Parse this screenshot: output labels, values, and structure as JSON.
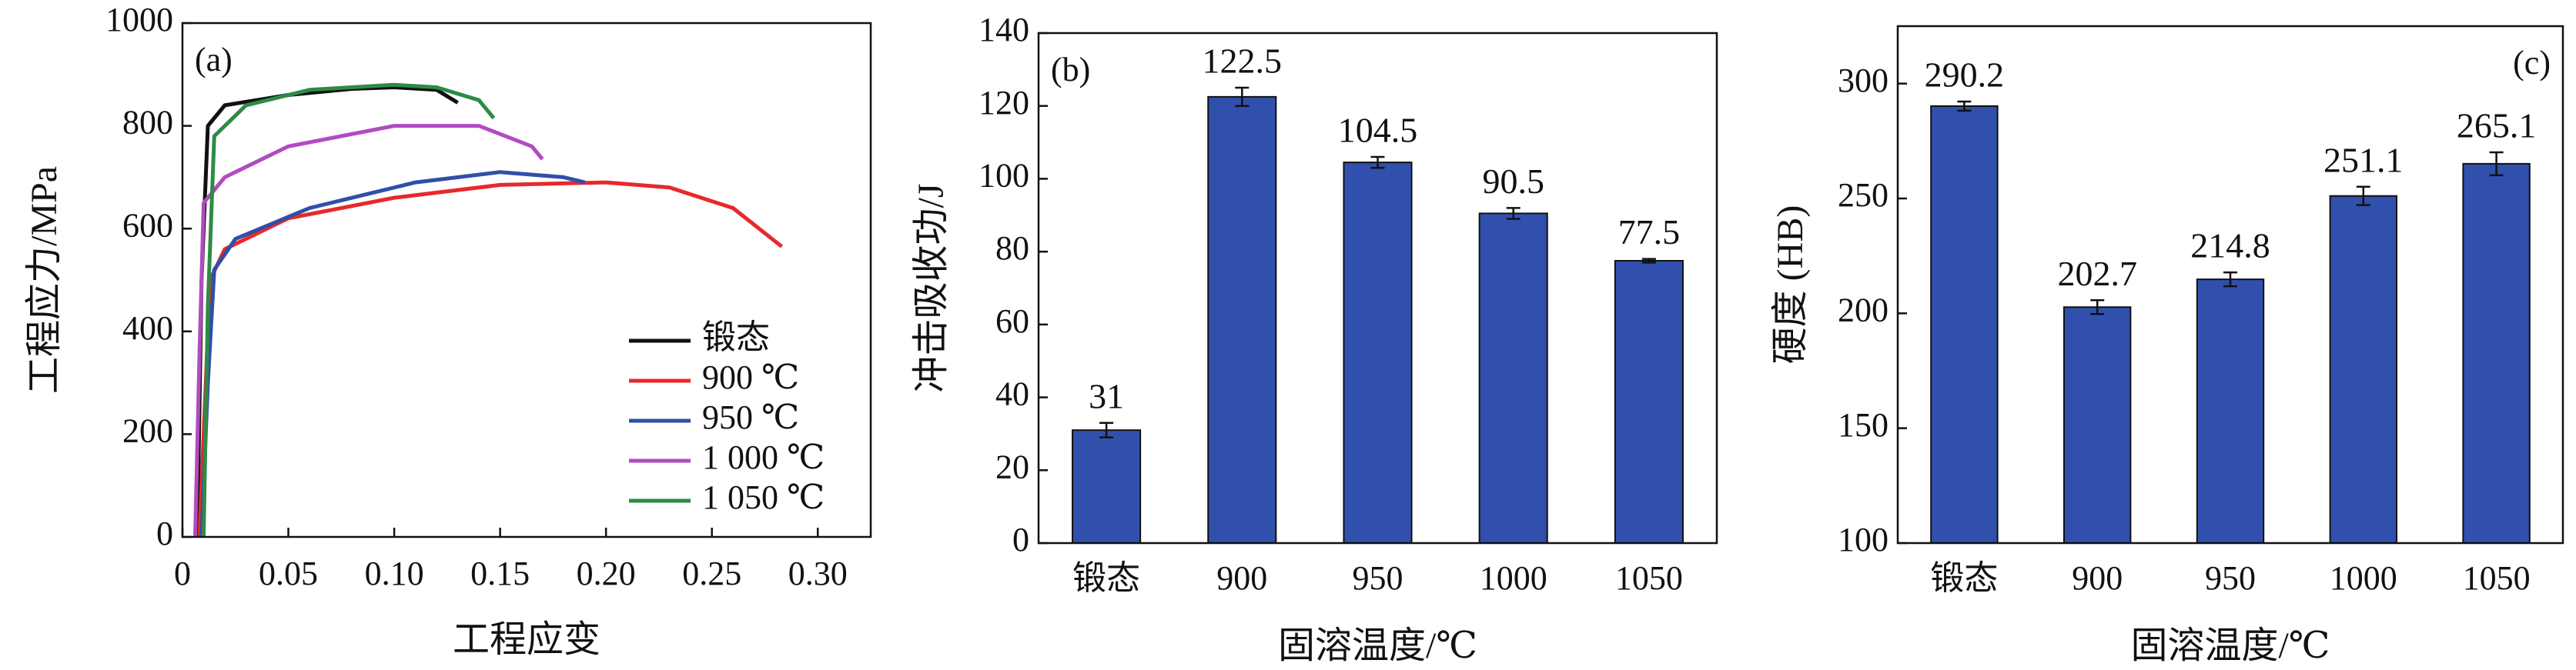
{
  "chart_data": [
    {
      "type": "line",
      "label": "(a)",
      "x_label": "工程应变",
      "y_label": "工程应力/MPa",
      "xlim": [
        0,
        0.325
      ],
      "xticks": [
        0,
        0.05,
        {
          "value": 0.1,
          "label": "0.10"
        },
        0.15,
        {
          "value": 0.2,
          "label": "0.20"
        },
        0.25,
        {
          "value": 0.3,
          "label": "0.30"
        }
      ],
      "ylim": [
        0,
        1000
      ],
      "yticks": [
        0,
        200,
        400,
        600,
        800,
        1000
      ],
      "legend": "lower right",
      "series": [
        {
          "name": "锻态",
          "color": "#111111",
          "x": [
            0.007,
            0.009,
            0.012,
            0.02,
            0.05,
            0.08,
            0.1,
            0.12,
            0.13
          ],
          "values": [
            0,
            500,
            800,
            840,
            860,
            872,
            875,
            870,
            845
          ]
        },
        {
          "name": "900 ℃",
          "color": "#e8282b",
          "x": [
            0.008,
            0.011,
            0.013,
            0.02,
            0.05,
            0.1,
            0.15,
            0.2,
            0.23,
            0.26,
            0.283
          ],
          "values": [
            0,
            300,
            500,
            560,
            620,
            660,
            685,
            690,
            680,
            640,
            565
          ]
        },
        {
          "name": "950 ℃",
          "color": "#2f4fa8",
          "x": [
            0.009,
            0.012,
            0.015,
            0.025,
            0.06,
            0.11,
            0.15,
            0.18,
            0.19
          ],
          "values": [
            0,
            300,
            520,
            580,
            640,
            690,
            710,
            700,
            690
          ]
        },
        {
          "name": "1 000 ℃",
          "color": "#b04cc0",
          "x": [
            0.006,
            0.008,
            0.01,
            0.02,
            0.05,
            0.1,
            0.14,
            0.165,
            0.17
          ],
          "values": [
            0,
            350,
            650,
            700,
            760,
            800,
            800,
            760,
            735
          ]
        },
        {
          "name": "1 050 ℃",
          "color": "#2e8b45",
          "x": [
            0.01,
            0.012,
            0.015,
            0.03,
            0.06,
            0.1,
            0.12,
            0.14,
            0.147
          ],
          "values": [
            0,
            450,
            780,
            840,
            870,
            880,
            875,
            850,
            815
          ]
        }
      ]
    },
    {
      "type": "bar",
      "label": "(b)",
      "x_label": "固溶温度/℃",
      "y_label": "冲击吸收功/J",
      "categories": [
        "锻态",
        "900",
        "950",
        "1000",
        "1050"
      ],
      "values": [
        31,
        122.5,
        104.5,
        90.5,
        77.5
      ],
      "errors": [
        2,
        2.5,
        1.5,
        1.5,
        0.5
      ],
      "color": "#3150ad",
      "ylim": [
        0,
        140
      ],
      "yticks": [
        0,
        20,
        40,
        60,
        80,
        100,
        120,
        140
      ]
    },
    {
      "type": "bar",
      "label": "(c)",
      "x_label": "固溶温度/℃",
      "y_label": "硬度 (HB)",
      "categories": [
        "锻态",
        "900",
        "950",
        "1000",
        "1050"
      ],
      "values": [
        290.2,
        202.7,
        214.8,
        251.1,
        265.1
      ],
      "errors": [
        2,
        3,
        3,
        4,
        5
      ],
      "color": "#3150ad",
      "ylim": [
        100,
        325
      ],
      "yticks": [
        100,
        150,
        200,
        250,
        300
      ]
    }
  ]
}
